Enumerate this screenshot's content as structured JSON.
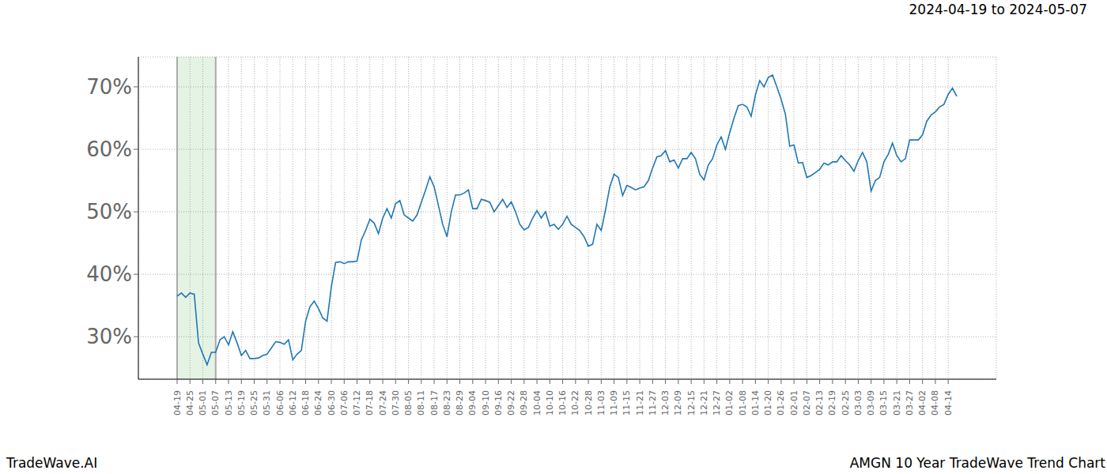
{
  "chart_data": {
    "type": "line",
    "title": "2024-04-19 to 2024-05-07",
    "annotations": [
      "TradeWave.AI",
      "AMGN 10 Year TradeWave Trend Chart"
    ],
    "categories": [
      "04-19",
      null,
      null,
      "04-25",
      null,
      null,
      "05-01",
      null,
      null,
      "05-07",
      null,
      null,
      "05-13",
      null,
      null,
      "05-19",
      null,
      null,
      "05-25",
      null,
      null,
      "05-31",
      null,
      null,
      "06-06",
      null,
      null,
      "06-12",
      null,
      null,
      "06-18",
      null,
      null,
      "06-24",
      null,
      null,
      "06-30",
      null,
      null,
      "07-06",
      null,
      null,
      "07-12",
      null,
      null,
      "07-18",
      null,
      null,
      "07-24",
      null,
      null,
      "07-30",
      null,
      null,
      "08-05",
      null,
      null,
      "08-11",
      null,
      null,
      "08-17",
      null,
      null,
      "08-23",
      null,
      null,
      "08-29",
      null,
      null,
      "09-04",
      null,
      null,
      "09-10",
      null,
      null,
      "09-16",
      null,
      null,
      "09-22",
      null,
      null,
      "09-28",
      null,
      null,
      "10-04",
      null,
      null,
      "10-10",
      null,
      null,
      "10-16",
      null,
      null,
      "10-22",
      null,
      null,
      "10-28",
      null,
      null,
      "11-03",
      null,
      null,
      "11-09",
      null,
      null,
      "11-15",
      null,
      null,
      "11-21",
      null,
      null,
      "11-27",
      null,
      null,
      "12-03",
      null,
      null,
      "12-09",
      null,
      null,
      "12-15",
      null,
      null,
      "12-21",
      null,
      null,
      "12-27",
      null,
      null,
      "01-02",
      null,
      null,
      "01-08",
      null,
      null,
      "01-14",
      null,
      null,
      "01-20",
      null,
      null,
      "01-26",
      null,
      null,
      "02-01",
      null,
      null,
      "02-07",
      null,
      null,
      "02-13",
      null,
      null,
      "02-19",
      null,
      null,
      "02-25",
      null,
      null,
      "03-03",
      null,
      null,
      "03-09",
      null,
      null,
      "03-15",
      null,
      null,
      "03-21",
      null,
      null,
      "03-27",
      null,
      null,
      "04-02",
      null,
      null,
      "04-08",
      null,
      null,
      "04-14",
      null,
      null
    ],
    "values": [
      36.5,
      37,
      36.3,
      37,
      36.8,
      29,
      27.2,
      25.5,
      27.5,
      27.5,
      29.5,
      30,
      28.7,
      30.8,
      29,
      27,
      27.8,
      26.5,
      26.5,
      26.6,
      27,
      27.2,
      28.2,
      29.2,
      29.1,
      28.8,
      29.5,
      26.3,
      27.2,
      27.8,
      32.5,
      34.8,
      35.7,
      34.5,
      33,
      32.5,
      38,
      41.9,
      42,
      41.7,
      42,
      42,
      42.1,
      45.5,
      47,
      48.8,
      48.2,
      46.5,
      49,
      50.5,
      49,
      51.3,
      51.8,
      49.5,
      49,
      48.5,
      49.5,
      51.5,
      53.5,
      55.6,
      54,
      51,
      48,
      46,
      50,
      52.7,
      52.7,
      53,
      53.5,
      50.5,
      50.5,
      52,
      51.8,
      51.5,
      50,
      51,
      52,
      50.7,
      51.6,
      50,
      48,
      47.1,
      47.5,
      49,
      50.2,
      49,
      50,
      47.7,
      48,
      47.2,
      48,
      49.3,
      48,
      47.5,
      47,
      46,
      44.5,
      44.8,
      48,
      47,
      50.3,
      54,
      56,
      55.5,
      52.6,
      54.2,
      53.9,
      53.5,
      53.8,
      54,
      55,
      57,
      58.8,
      59,
      59.8,
      58,
      58.3,
      57,
      58.5,
      58.5,
      59.5,
      58.5,
      56,
      55.1,
      57.5,
      58.5,
      60.7,
      62,
      60,
      62.7,
      65,
      67,
      67.2,
      66.8,
      65.3,
      68.7,
      71,
      70,
      71.5,
      71.9,
      70,
      68,
      65.6,
      60.5,
      60.7,
      57.8,
      57.9,
      55.5,
      55.8,
      56.3,
      56.8,
      57.8,
      57.5,
      58,
      58,
      59,
      58.2,
      57.5,
      56.5,
      58.2,
      59.5,
      58,
      53.3,
      55,
      55.5,
      58,
      59.2,
      61,
      59,
      58,
      58.5,
      61.5,
      61.5,
      61.5,
      62.3,
      64.5,
      65.5,
      66,
      66.8,
      67.2,
      68.8,
      69.8,
      68.5
    ],
    "color": "#1f77b4",
    "highlight": {
      "start": "04-19",
      "end": "05-07",
      "color": "#2ca02c"
    },
    "ylim": [
      23.2,
      74.8
    ],
    "yticks": [
      {
        "value": 30,
        "label": "30%"
      },
      {
        "value": 40,
        "label": "40%"
      },
      {
        "value": 50,
        "label": "50%"
      },
      {
        "value": 60,
        "label": "60%"
      },
      {
        "value": 70,
        "label": "70%"
      }
    ],
    "grid": true
  }
}
